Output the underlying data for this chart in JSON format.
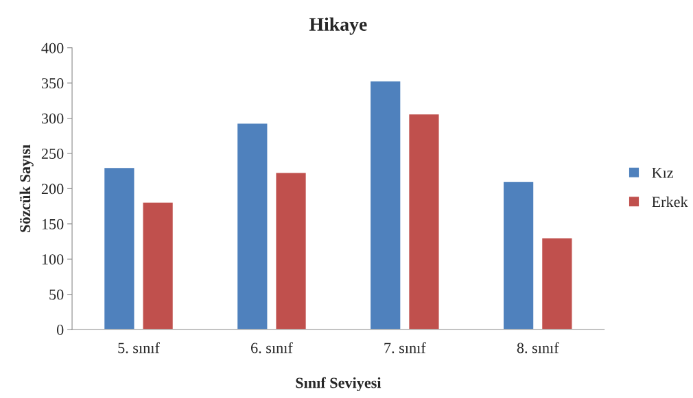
{
  "chart_data": {
    "type": "bar",
    "title": "Hikaye",
    "xlabel": "Sınıf Seviyesi",
    "ylabel": "Sözcük Sayısı",
    "categories": [
      "5. sınıf",
      "6. sınıf",
      "7. sınıf",
      "8. sınıf"
    ],
    "series": [
      {
        "name": "Kız",
        "color": "#4f81bd",
        "values": [
          230,
          293,
          353,
          210
        ]
      },
      {
        "name": "Erkek",
        "color": "#c0504d",
        "values": [
          181,
          223,
          306,
          130
        ]
      }
    ],
    "ylim": [
      0,
      400
    ],
    "yticks": [
      0,
      50,
      100,
      150,
      200,
      250,
      300,
      350,
      400
    ],
    "grid": false,
    "legend": "right"
  }
}
